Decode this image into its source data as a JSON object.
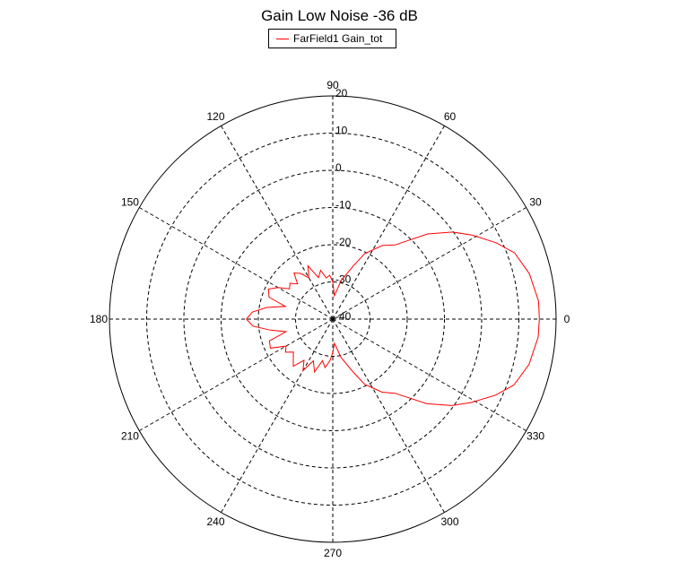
{
  "chart_data": {
    "type": "polar-line",
    "title": "Gain Low Noise -36 dB",
    "angle_ticks": [
      0,
      30,
      60,
      90,
      120,
      150,
      180,
      210,
      240,
      270,
      300,
      330
    ],
    "radial_ticks": [
      -40,
      -30,
      -20,
      -10,
      0,
      10,
      20
    ],
    "rlim": [
      -40,
      20
    ],
    "grid": true,
    "legend_position": "top-center",
    "series": [
      {
        "name": "FarField1 Gain_tot",
        "color": "#ff0000",
        "angles_deg": [
          0,
          5,
          13,
          20,
          25,
          31,
          36,
          42,
          50,
          56,
          64,
          69,
          78,
          86,
          90,
          94,
          99,
          104,
          109,
          115,
          120,
          125,
          130,
          135,
          140,
          145,
          150,
          155,
          161,
          165,
          170,
          175,
          180,
          185,
          190,
          195,
          199,
          205,
          210,
          215,
          220,
          225,
          230,
          235,
          240,
          245,
          251,
          256,
          261,
          266,
          270,
          274,
          282,
          291,
          296,
          304,
          310,
          318,
          324,
          329,
          335,
          340,
          347,
          355,
          360
        ],
        "gain_db": [
          15.5,
          15.5,
          14.2,
          12,
          8.5,
          3.8,
          -0.2,
          -5.8,
          -14,
          -16.1,
          -20.4,
          -24.7,
          -29.5,
          -33.7,
          -30,
          -28.2,
          -28.8,
          -26.5,
          -28.2,
          -24.2,
          -27.2,
          -25,
          -23.8,
          -26.6,
          -25,
          -25.8,
          -23,
          -20.9,
          -21.9,
          -26.8,
          -22,
          -18.3,
          -16.8,
          -18.5,
          -23,
          -27,
          -22,
          -21.5,
          -25.5,
          -24.5,
          -26.2,
          -25,
          -23.5,
          -26.5,
          -24,
          -27.6,
          -25,
          -28.5,
          -26.8,
          -28.8,
          -31,
          -33.5,
          -29.5,
          -24.8,
          -20.5,
          -16.3,
          -14,
          -6,
          -0.5,
          3.5,
          8.3,
          11.8,
          14.1,
          15.4,
          15.5
        ]
      }
    ]
  }
}
